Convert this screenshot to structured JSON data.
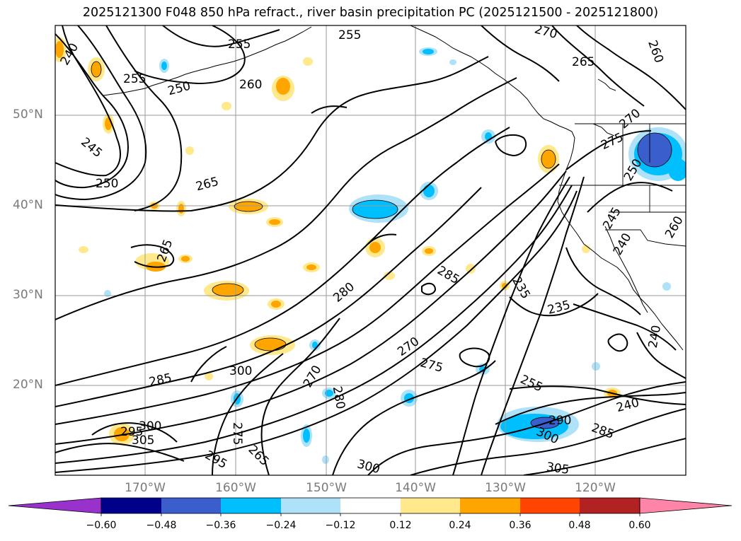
{
  "title": "2025121300 F048 850 hPa refract., river basin precipitation PC (2025121500 - 2025121800)",
  "lat_labels": [
    "50°N",
    "40°N",
    "30°N",
    "20°N"
  ],
  "lon_labels": [
    "170°W",
    "160°W",
    "150°W",
    "140°W",
    "130°W",
    "120°W"
  ],
  "contour_labels": [
    "240",
    "255",
    "255",
    "255",
    "250",
    "260",
    "245",
    "250",
    "265",
    "265",
    "280",
    "285",
    "295",
    "300",
    "305",
    "300",
    "270",
    "275",
    "265",
    "295",
    "300",
    "270",
    "275",
    "280",
    "285",
    "235",
    "235",
    "255",
    "240",
    "290",
    "300",
    "285",
    "305",
    "270",
    "265",
    "260",
    "275",
    "270",
    "250",
    "245",
    "240",
    "240",
    "260"
  ],
  "colorbar": {
    "ticks": [
      "−0.60",
      "−0.48",
      "−0.36",
      "−0.24",
      "−0.12",
      "0.12",
      "0.24",
      "0.36",
      "0.48",
      "0.60"
    ],
    "colors": [
      "#9932CC",
      "#00008B",
      "#3A5FCD",
      "#00BFFF",
      "#ADE2F8",
      "#FFFFFF",
      "#FFE98C",
      "#FFA500",
      "#FF4500",
      "#B22222",
      "#FF85A8"
    ]
  }
}
